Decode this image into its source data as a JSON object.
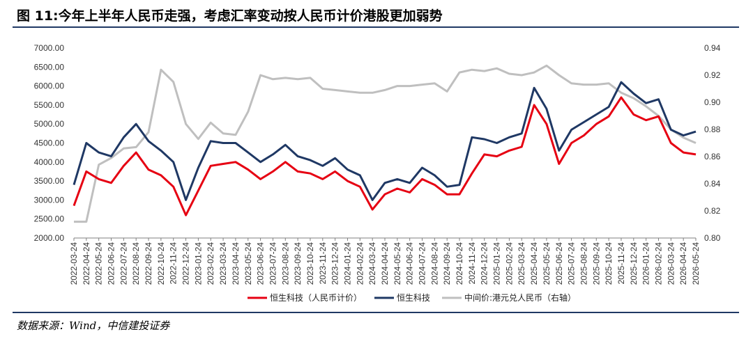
{
  "title": "图 11:今年上半年人民币走强，考虑汇率变动按人民币计价港股更加弱势",
  "source": "数据来源：Wind，中信建投证券",
  "chart_data": {
    "type": "line",
    "title": "",
    "xlabel": "",
    "ylabel": "",
    "ylim": [
      2000,
      7000
    ],
    "y2lim": [
      0.8,
      0.94
    ],
    "yticks": [
      "7000.00",
      "6500.00",
      "6000.00",
      "5500.00",
      "5000.00",
      "4500.00",
      "4000.00",
      "3500.00",
      "3000.00",
      "2500.00",
      "2000.00"
    ],
    "y2ticks": [
      "0.94",
      "0.92",
      "0.90",
      "0.88",
      "0.86",
      "0.84",
      "0.82",
      "0.80"
    ],
    "legend_position": "bottom",
    "grid": false,
    "x": [
      "2022-03-24",
      "2022-04-24",
      "2022-05-24",
      "2022-06-24",
      "2022-07-24",
      "2022-08-24",
      "2022-09-24",
      "2022-10-24",
      "2022-11-24",
      "2022-12-24",
      "2023-01-24",
      "2023-02-24",
      "2023-03-24",
      "2023-04-24",
      "2023-05-24",
      "2023-06-24",
      "2023-07-24",
      "2023-08-24",
      "2023-09-24",
      "2023-10-24",
      "2023-11-24",
      "2023-12-24",
      "2024-01-24",
      "2024-02-24",
      "2024-03-24",
      "2024-04-24",
      "2024-05-24",
      "2024-06-24",
      "2024-07-24",
      "2024-08-24",
      "2024-09-24",
      "2024-10-24",
      "2024-11-24",
      "2024-12-24",
      "2025-01-24",
      "2025-02-24",
      "2025-03-24",
      "2025-04-24",
      "2025-05-24",
      "2025-06-24",
      "2025-07-24",
      "2025-08-24",
      "2025-09-24",
      "2025-10-24",
      "2025-11-24",
      "2025-12-24",
      "2026-01-24",
      "2026-02-24",
      "2026-03-24",
      "2026-04-24",
      "2026-05-24"
    ],
    "series": [
      {
        "name": "恒生科技（人民币计价）",
        "axis": "left",
        "color": "#e60012",
        "values": [
          2850,
          3750,
          3550,
          3450,
          3900,
          4250,
          3800,
          3650,
          3350,
          2600,
          3250,
          3900,
          3950,
          4000,
          3800,
          3550,
          3750,
          4000,
          3750,
          3700,
          3550,
          3750,
          3500,
          3350,
          2750,
          3150,
          3300,
          3200,
          3550,
          3400,
          3150,
          3150,
          3700,
          4200,
          4150,
          4300,
          4400,
          5500,
          5000,
          3950,
          4500,
          4700,
          5000,
          5200,
          5700,
          5250,
          5100,
          5200,
          4500,
          4250,
          4200
        ]
      },
      {
        "name": "恒生科技",
        "axis": "left",
        "color": "#1f3864",
        "values": [
          3400,
          4500,
          4250,
          4150,
          4650,
          5000,
          4550,
          4300,
          4000,
          3000,
          3850,
          4550,
          4500,
          4500,
          4250,
          4000,
          4200,
          4450,
          4150,
          4050,
          3900,
          4100,
          3800,
          3650,
          3000,
          3450,
          3550,
          3450,
          3850,
          3650,
          3350,
          3400,
          4650,
          4600,
          4500,
          4650,
          4750,
          5950,
          5400,
          4300,
          4850,
          5050,
          5250,
          5450,
          6100,
          5800,
          5550,
          5650,
          4850,
          4700,
          4800
        ]
      },
      {
        "name": "中间价:港元兑人民币（右轴）",
        "axis": "right",
        "color": "#bfbfbf",
        "values": [
          0.812,
          0.812,
          0.854,
          0.859,
          0.866,
          0.867,
          0.878,
          0.924,
          0.915,
          0.884,
          0.873,
          0.885,
          0.877,
          0.876,
          0.893,
          0.92,
          0.917,
          0.918,
          0.917,
          0.918,
          0.91,
          0.909,
          0.908,
          0.907,
          0.907,
          0.909,
          0.912,
          0.912,
          0.913,
          0.914,
          0.908,
          0.922,
          0.924,
          0.923,
          0.925,
          0.921,
          0.92,
          0.922,
          0.927,
          0.92,
          0.914,
          0.913,
          0.913,
          0.914,
          0.907,
          0.903,
          0.897,
          0.89,
          0.88,
          0.874,
          0.87
        ]
      }
    ]
  }
}
